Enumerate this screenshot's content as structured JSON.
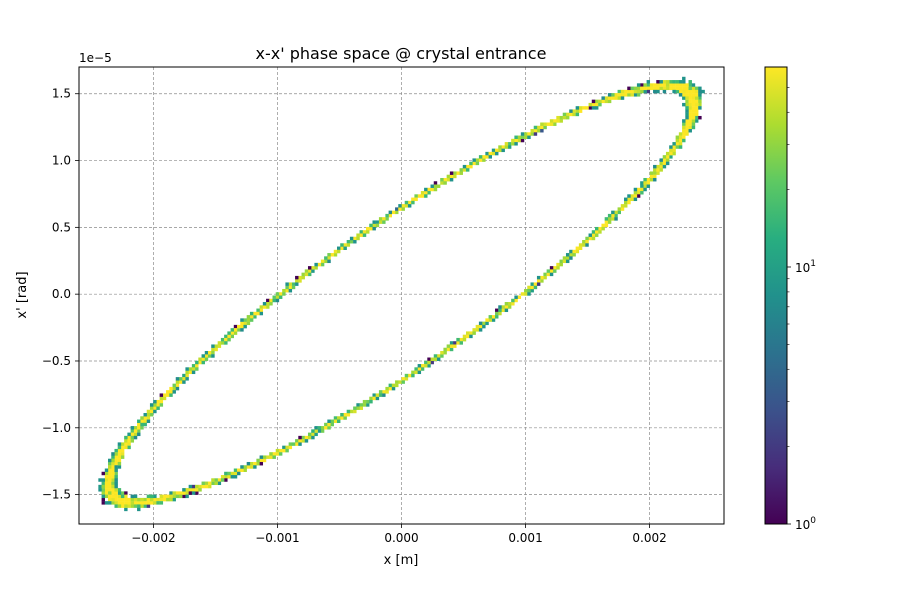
{
  "chart_data": {
    "type": "heatmap",
    "title": "x-x' phase space @ crystal entrance",
    "xlabel": "x [m]",
    "ylabel": "x' [rad]",
    "y_offset_label": "1e−5",
    "xlim": [
      -0.0026,
      0.0026
    ],
    "ylim": [
      -1.72e-05,
      1.7e-05
    ],
    "x_ticks": [
      -0.002,
      -0.001,
      0.0,
      0.001,
      0.002
    ],
    "x_tick_labels": [
      "−0.002",
      "−0.001",
      "0.000",
      "0.001",
      "0.002"
    ],
    "y_ticks": [
      -1.5e-05,
      -1e-05,
      -5e-06,
      0.0,
      5e-06,
      1e-05,
      1.5e-05
    ],
    "y_tick_labels": [
      "−1.5",
      "−1.0",
      "−0.5",
      "0.0",
      "0.5",
      "1.0",
      "1.5"
    ],
    "grid": true,
    "colormap": "viridis",
    "colorbar": {
      "scale": "log",
      "min": 1,
      "max": 60,
      "major_tick_labels": [
        {
          "value": 1,
          "base": "10",
          "exp": "0"
        },
        {
          "value": 10,
          "base": "10",
          "exp": "1"
        }
      ],
      "minor_ticks": [
        2,
        3,
        4,
        5,
        6,
        7,
        8,
        9,
        20,
        30,
        40,
        50
      ]
    },
    "distribution": {
      "shape": "tilted ellipse ring",
      "outline_points": [
        [
          -0.00235,
          -1.37e-05
        ],
        [
          -0.002,
          -1.53e-05
        ],
        [
          -0.001,
          -1.25e-05
        ],
        [
          0.0,
          -6.8e-06
        ],
        [
          0.001,
          0.0
        ],
        [
          0.002,
          8.8e-06
        ],
        [
          0.00235,
          1.4e-05
        ],
        [
          0.0021,
          1.56e-05
        ],
        [
          0.001,
          1.22e-05
        ],
        [
          0.0,
          6.8e-06
        ],
        [
          -0.001,
          5e-07
        ],
        [
          -0.002,
          -8.5e-06
        ]
      ],
      "peak_count_regions": [
        "upper-right turning point",
        "lower-left turning point"
      ]
    }
  }
}
